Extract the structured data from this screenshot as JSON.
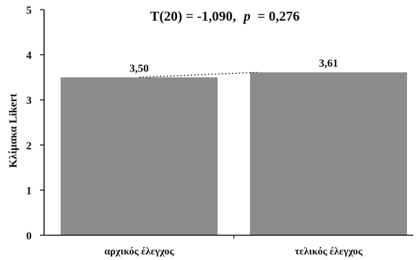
{
  "chart_data": {
    "type": "bar",
    "annotation": {
      "prefix": "T(20) = -1,090,",
      "p_symbol": "p",
      "suffix": "= 0,276"
    },
    "ylabel": "Κλίμακα Likert",
    "xlabel": "",
    "ylim": [
      0,
      5
    ],
    "yticks": [
      "0",
      "1",
      "2",
      "3",
      "4",
      "5"
    ],
    "categories": [
      "αρχικός έλεγχος",
      "τελικός έλεγχος"
    ],
    "values": [
      3.5,
      3.61
    ],
    "value_labels": [
      "3,50",
      "3,61"
    ],
    "bar_color": "#8c8c8c",
    "connector": "dotted",
    "grid": false
  }
}
